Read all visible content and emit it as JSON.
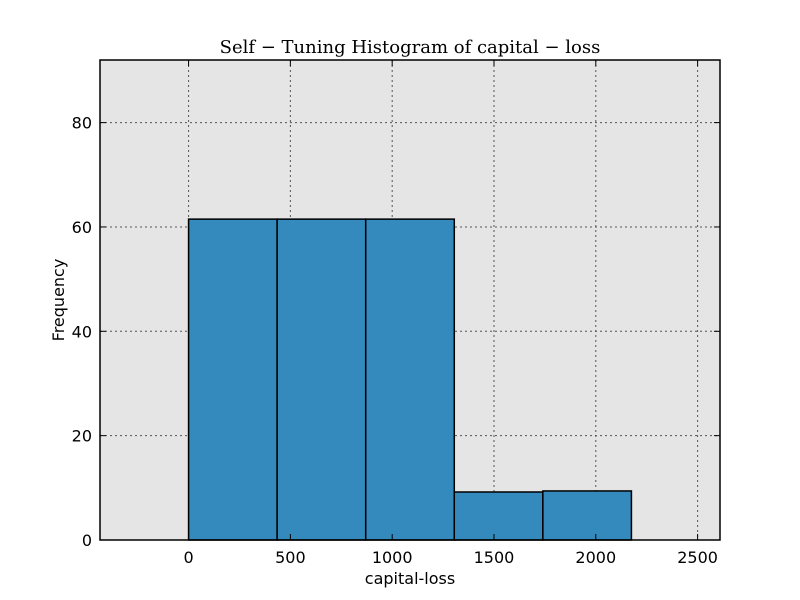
{
  "chart_data": {
    "type": "bar",
    "title": "Self − Tuning Histogram of capital − loss",
    "xlabel": "capital-loss",
    "ylabel": "Frequency",
    "xlim": [
      -435,
      2610
    ],
    "ylim": [
      0,
      92
    ],
    "xticks": [
      0,
      500,
      1000,
      1500,
      2000,
      2500
    ],
    "yticks": [
      0,
      20,
      40,
      60,
      80
    ],
    "grid": true,
    "colors": {
      "plot_background": "#e5e5e5",
      "bar_fill": "#348abd",
      "bar_edge": "#000000",
      "grid": "#555555"
    },
    "bins": [
      {
        "x_start": 0,
        "x_end": 435,
        "value": 61.5
      },
      {
        "x_start": 435,
        "x_end": 870,
        "value": 61.5
      },
      {
        "x_start": 870,
        "x_end": 1305,
        "value": 61.5
      },
      {
        "x_start": 1305,
        "x_end": 1740,
        "value": 9.2
      },
      {
        "x_start": 1740,
        "x_end": 2175,
        "value": 9.4
      }
    ]
  }
}
